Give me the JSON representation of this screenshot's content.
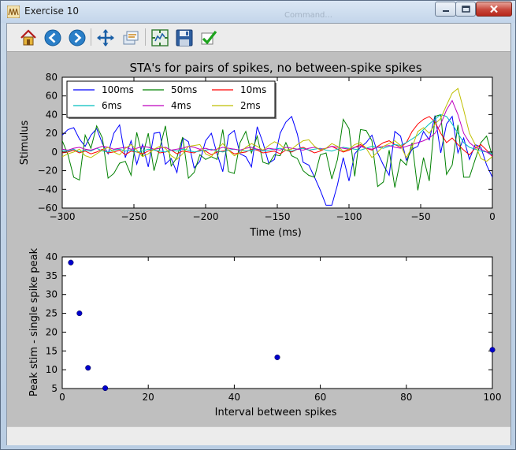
{
  "window": {
    "title": "Exercise 10",
    "background_window_title": "Command...",
    "buttons": {
      "minimize": "minimize",
      "maximize": "maximize",
      "close": "close"
    }
  },
  "toolbar": {
    "buttons": [
      {
        "name": "home",
        "icon": "home-icon"
      },
      {
        "name": "back",
        "icon": "arrow-left-icon"
      },
      {
        "name": "forward",
        "icon": "arrow-right-icon"
      },
      {
        "name": "pan",
        "icon": "pan-arrows-icon"
      },
      {
        "name": "zoom",
        "icon": "zoom-rect-icon"
      },
      {
        "name": "subplots",
        "icon": "subplots-icon"
      },
      {
        "name": "save",
        "icon": "floppy-icon"
      },
      {
        "name": "edit",
        "icon": "checkmark-icon"
      }
    ]
  },
  "colors": {
    "100ms": "#0000ff",
    "50ms": "#008000",
    "10ms": "#ff0000",
    "6ms": "#00bfbf",
    "4ms": "#bf00bf",
    "2ms": "#bfbf00",
    "scatter": "#0000cc"
  },
  "chart_data": [
    {
      "type": "line",
      "title": "STA's for pairs of spikes, no between-spike spikes",
      "xlabel": "Time (ms)",
      "ylabel": "Stimulus",
      "xlim": [
        -300,
        0
      ],
      "ylim": [
        -60,
        80
      ],
      "xticks": [
        -300,
        -250,
        -200,
        -150,
        -100,
        -50,
        0
      ],
      "xtick_labels": [
        "−300",
        "−250",
        "−200",
        "−150",
        "−100",
        "−50",
        "0"
      ],
      "yticks": [
        -60,
        -40,
        -20,
        0,
        20,
        40,
        60,
        80
      ],
      "ytick_labels": [
        "−60",
        "−40",
        "−20",
        "0",
        "20",
        "40",
        "60",
        "80"
      ],
      "legend": {
        "placement": "top-left",
        "columns": 3,
        "entries": [
          "100ms",
          "50ms",
          "10ms",
          "6ms",
          "4ms",
          "2ms"
        ]
      },
      "x": [
        -300,
        -296,
        -292,
        -288,
        -284,
        -280,
        -276,
        -272,
        -268,
        -264,
        -260,
        -256,
        -252,
        -248,
        -244,
        -240,
        -236,
        -232,
        -228,
        -224,
        -220,
        -216,
        -212,
        -208,
        -204,
        -200,
        -196,
        -192,
        -188,
        -184,
        -180,
        -176,
        -172,
        -168,
        -164,
        -160,
        -156,
        -152,
        -148,
        -144,
        -140,
        -136,
        -132,
        -128,
        -124,
        -120,
        -116,
        -112,
        -108,
        -104,
        -100,
        -96,
        -92,
        -88,
        -84,
        -80,
        -76,
        -72,
        -68,
        -64,
        -60,
        -56,
        -52,
        -48,
        -44,
        -40,
        -36,
        -32,
        -28,
        -24,
        -20,
        -16,
        -12,
        -8,
        -4,
        0
      ],
      "series": [
        {
          "name": "100ms",
          "values": [
            18,
            24,
            26,
            14,
            6,
            18,
            25,
            9,
            -2,
            20,
            29,
            -6,
            12,
            -13,
            8,
            -16,
            20,
            21,
            -13,
            -7,
            -22,
            15,
            11,
            -17,
            -10,
            12,
            20,
            -2,
            -21,
            18,
            23,
            -2,
            -5,
            -16,
            27,
            10,
            -12,
            -8,
            20,
            32,
            38,
            19,
            -11,
            -14,
            -27,
            -41,
            -57,
            -57,
            -35,
            -6,
            -31,
            -2,
            5,
            10,
            18,
            -1,
            -14,
            -25,
            22,
            17,
            -9,
            3,
            6,
            22,
            13,
            39,
            -1,
            30,
            38,
            -1,
            15,
            -8,
            8,
            5,
            -14,
            -27
          ]
        },
        {
          "name": "50ms",
          "values": [
            12,
            -3,
            -27,
            -30,
            18,
            4,
            28,
            15,
            -28,
            -23,
            -12,
            -10,
            -25,
            21,
            -5,
            20,
            -20,
            4,
            28,
            -15,
            -6,
            16,
            -28,
            -22,
            -3,
            -8,
            -5,
            -8,
            24,
            -21,
            -23,
            10,
            22,
            -1,
            17,
            -11,
            -13,
            -3,
            -4,
            10,
            -4,
            -7,
            -20,
            -25,
            -27,
            -3,
            -1,
            -29,
            -8,
            35,
            25,
            -26,
            24,
            23,
            12,
            -37,
            -32,
            2,
            -38,
            -8,
            -14,
            10,
            -41,
            -6,
            -31,
            38,
            40,
            -24,
            -14,
            29,
            -27,
            -27,
            -8,
            10,
            17,
            -5
          ]
        },
        {
          "name": "10ms",
          "values": [
            -1,
            0,
            2,
            -1,
            1,
            -2,
            0,
            3,
            -1,
            0,
            2,
            -3,
            1,
            0,
            -2,
            1,
            3,
            -1,
            0,
            2,
            -2,
            1,
            0,
            -1,
            2,
            1,
            -3,
            0,
            1,
            2,
            -2,
            -1,
            0,
            3,
            2,
            -1,
            0,
            1,
            -2,
            2,
            0,
            3,
            5,
            2,
            -1,
            1,
            4,
            6,
            3,
            0,
            2,
            5,
            8,
            4,
            2,
            6,
            10,
            12,
            8,
            5,
            10,
            22,
            30,
            35,
            38,
            32,
            20,
            10,
            15,
            8,
            2,
            -3,
            4,
            8,
            2,
            -5
          ]
        },
        {
          "name": "6ms",
          "values": [
            2,
            1,
            3,
            0,
            2,
            1,
            4,
            1,
            0,
            2,
            3,
            1,
            2,
            0,
            1,
            3,
            2,
            1,
            0,
            2,
            1,
            3,
            2,
            0,
            1,
            2,
            3,
            1,
            0,
            2,
            3,
            2,
            1,
            2,
            3,
            1,
            2,
            3,
            4,
            2,
            1,
            3,
            4,
            2,
            3,
            4,
            2,
            1,
            3,
            5,
            4,
            3,
            2,
            4,
            6,
            5,
            4,
            6,
            8,
            7,
            10,
            14,
            18,
            24,
            30,
            35,
            40,
            38,
            30,
            20,
            10,
            5,
            3,
            1,
            0,
            -2
          ]
        },
        {
          "name": "4ms",
          "values": [
            3,
            2,
            4,
            5,
            3,
            2,
            4,
            6,
            5,
            3,
            4,
            5,
            3,
            4,
            6,
            5,
            3,
            4,
            5,
            2,
            3,
            4,
            6,
            5,
            3,
            4,
            2,
            3,
            5,
            4,
            3,
            2,
            4,
            5,
            3,
            2,
            4,
            3,
            2,
            5,
            4,
            3,
            2,
            4,
            5,
            3,
            4,
            6,
            5,
            4,
            3,
            5,
            6,
            4,
            3,
            5,
            6,
            7,
            5,
            4,
            6,
            8,
            10,
            12,
            15,
            20,
            30,
            45,
            55,
            40,
            20,
            10,
            5,
            3,
            0,
            -4
          ]
        },
        {
          "name": "2ms",
          "values": [
            -5,
            -2,
            0,
            3,
            -4,
            -6,
            -2,
            2,
            5,
            0,
            -3,
            4,
            8,
            2,
            -5,
            -2,
            3,
            6,
            4,
            -4,
            -8,
            -2,
            6,
            7,
            8,
            -2,
            -5,
            3,
            9,
            2,
            -4,
            -1,
            5,
            9,
            6,
            2,
            7,
            11,
            8,
            2,
            3,
            8,
            12,
            13,
            6,
            2,
            4,
            9,
            6,
            1,
            3,
            8,
            10,
            4,
            -6,
            0,
            6,
            9,
            12,
            7,
            -6,
            5,
            22,
            26,
            20,
            30,
            36,
            50,
            63,
            68,
            45,
            20,
            8,
            -7,
            -10,
            -5
          ]
        }
      ]
    },
    {
      "type": "scatter",
      "xlabel": "Interval between spikes",
      "ylabel": "Peak stim - single spike peak",
      "xlim": [
        0,
        100
      ],
      "ylim": [
        5,
        40
      ],
      "xticks": [
        0,
        20,
        40,
        60,
        80,
        100
      ],
      "yticks": [
        5,
        10,
        15,
        20,
        25,
        30,
        35,
        40
      ],
      "x": [
        2,
        4,
        6,
        10,
        50,
        100
      ],
      "y": [
        38.5,
        25,
        10.5,
        5.1,
        13.3,
        15.3
      ]
    }
  ]
}
